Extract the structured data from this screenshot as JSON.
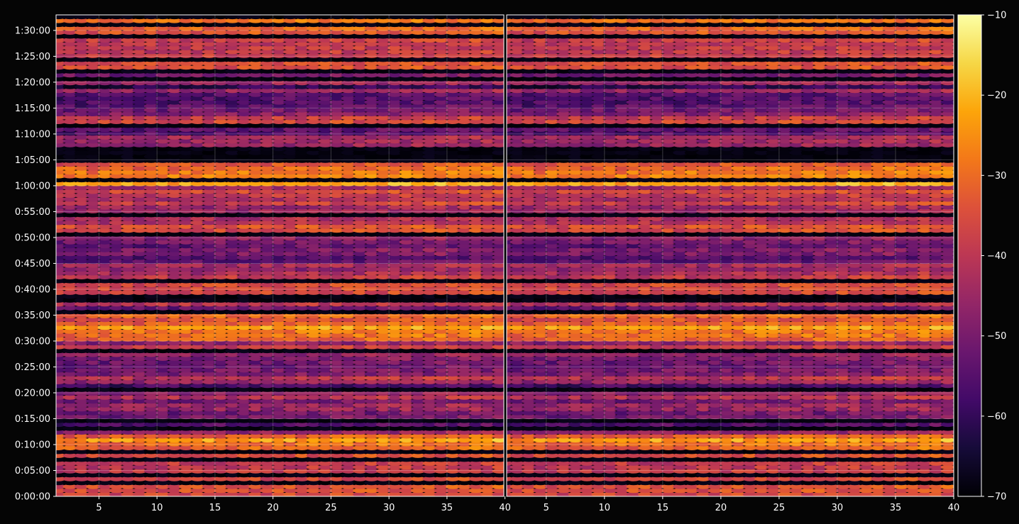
{
  "chart_data": {
    "type": "heatmap",
    "title": "",
    "xlabel": "",
    "ylabel": "",
    "colormap": "inferno",
    "background": "#050505",
    "panels": [
      {
        "name": "left",
        "xlim": [
          1.3,
          39.9
        ],
        "x_ticks": [
          5,
          10,
          15,
          20,
          25,
          30,
          35,
          40
        ],
        "x_tick_labels": [
          "5",
          "10",
          "15",
          "20",
          "25",
          "30",
          "35",
          "40"
        ]
      },
      {
        "name": "right",
        "xlim": [
          1.6,
          40.0
        ],
        "x_ticks": [
          5,
          10,
          15,
          20,
          25,
          30,
          35,
          40
        ],
        "x_tick_labels": [
          "5",
          "10",
          "15",
          "20",
          "25",
          "30",
          "35",
          "40"
        ]
      }
    ],
    "y_seconds_range": [
      0,
      5580
    ],
    "y_ticks": [
      0,
      300,
      600,
      900,
      1200,
      1500,
      1800,
      2100,
      2400,
      2700,
      3000,
      3300,
      3600,
      3900,
      4200,
      4500,
      4800,
      5100,
      5400
    ],
    "y_tick_labels": [
      "0:00:00",
      "0:05:00",
      "0:10:00",
      "0:15:00",
      "0:20:00",
      "0:25:00",
      "0:30:00",
      "0:35:00",
      "0:40:00",
      "0:45:00",
      "0:50:00",
      "0:55:00",
      "1:00:00",
      "1:05:00",
      "1:10:00",
      "1:15:00",
      "1:20:00",
      "1:25:00",
      "1:30:00"
    ],
    "x_columns": 39,
    "row_step_seconds": 45,
    "grid": true,
    "colorbar": {
      "vmin": -70,
      "vmax": -10,
      "ticks": [
        -10,
        -20,
        -30,
        -40,
        -50,
        -60,
        -70
      ],
      "tick_labels": [
        "−10",
        "−20",
        "−30",
        "−40",
        "−50",
        "−60",
        "−70"
      ]
    }
  }
}
